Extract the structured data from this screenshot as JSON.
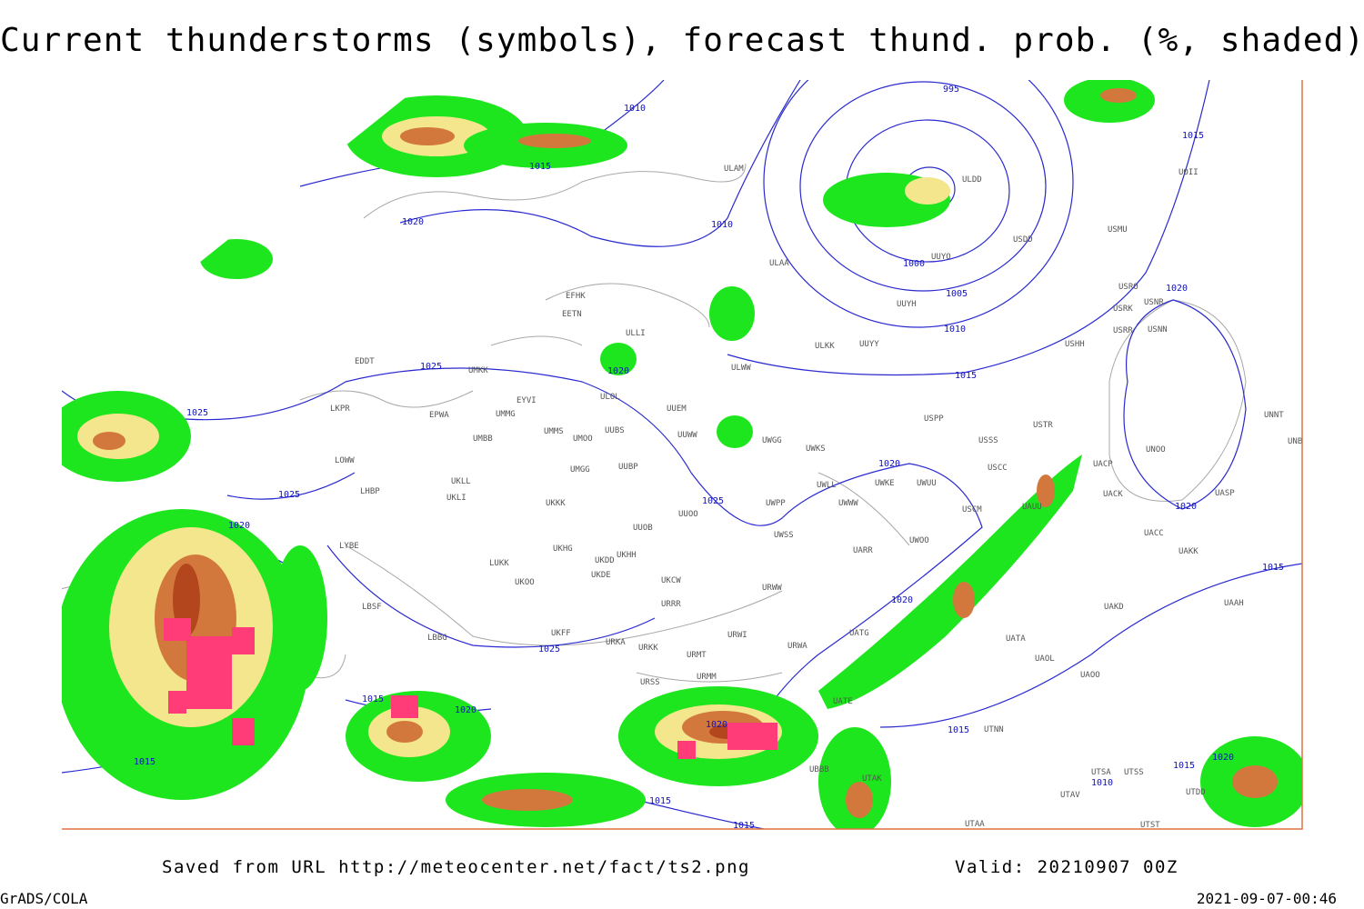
{
  "title": "Current thunderstorms (symbols), forecast thund. prob. (%, shaded)",
  "footer": {
    "saved": "Saved from URL http://meteocenter.net/fact/ts2.png",
    "valid": "Valid: 20210907 00Z",
    "credit": "GrADS/COLA",
    "timestamp": "2021-09-07-00:46"
  },
  "isobars": [
    "995",
    "1000",
    "1005",
    "1010",
    "1015",
    "1020",
    "1025"
  ],
  "stations": [
    "ULAM",
    "ULAA",
    "EFHK",
    "EETN",
    "ULLI",
    "ULOL",
    "UUEM",
    "UUWW",
    "UMMS",
    "UMOO",
    "UUBS",
    "UMMG",
    "EPWA",
    "UMBB",
    "UMKK",
    "EYVI",
    "EDDT",
    "LKPR",
    "LOWW",
    "LHBP",
    "UKLL",
    "UKLI",
    "UMGG",
    "UUBP",
    "UKKK",
    "UUOO",
    "UUOB",
    "UKHH",
    "UKHG",
    "UKDD",
    "UKDE",
    "UKCW",
    "UKOO",
    "LUKK",
    "URRR",
    "UKFF",
    "URKA",
    "URKK",
    "URMT",
    "URSS",
    "URMM",
    "URWI",
    "URWA",
    "LYBE",
    "LBSF",
    "LBBG",
    "UWPP",
    "UWSS",
    "URWW",
    "UWWW",
    "UWKE",
    "UWUU",
    "UWLL",
    "UWGG",
    "UWKS",
    "ULKK",
    "UUYY",
    "UUYH",
    "ULWW",
    "ULDD",
    "UUYO",
    "USDD",
    "USMU",
    "USRO",
    "USRK",
    "USNR",
    "USRR",
    "USNN",
    "USHH",
    "USPP",
    "USSS",
    "USTR",
    "USCC",
    "USCM",
    "UAUU",
    "UACP",
    "UACK",
    "UASP",
    "UNOO",
    "UNNT",
    "UNBB",
    "UACC",
    "UAKK",
    "UWOO",
    "UARR",
    "UATG",
    "UATE",
    "UATA",
    "UAOL",
    "UAOO",
    "UAKD",
    "UAAH",
    "UTNN",
    "UTAK",
    "UTAA",
    "UTSA",
    "UTSS",
    "UTAV",
    "UTDD",
    "UTST",
    "UBBB",
    "UOII"
  ]
}
